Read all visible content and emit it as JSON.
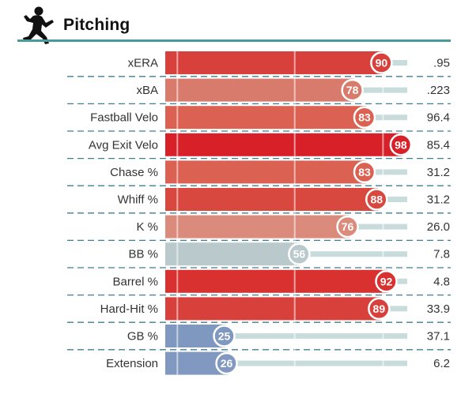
{
  "title": "Pitching",
  "icon": "pitcher-silhouette-icon",
  "colors": {
    "rule": "#4b9a9a",
    "track": "#c9dcdc",
    "divider": "#3f7f8f"
  },
  "chart_data": {
    "type": "bar",
    "orientation": "horizontal",
    "title": "Pitching",
    "xlim": [
      0,
      100
    ],
    "categories": [
      "xERA",
      "xBA",
      "Fastball Velo",
      "Avg Exit Velo",
      "Chase %",
      "Whiff %",
      "K %",
      "BB %",
      "Barrel %",
      "Hard-Hit %",
      "GB %",
      "Extension"
    ],
    "percentiles": [
      90,
      78,
      83,
      98,
      83,
      88,
      76,
      56,
      92,
      89,
      25,
      26
    ],
    "values": [
      ".95",
      ".223",
      "96.4",
      "85.4",
      "31.2",
      "31.2",
      "26.0",
      "7.8",
      "4.8",
      "33.9",
      "37.1",
      "6.2"
    ],
    "bar_colors": [
      "#d8403c",
      "#d97b6c",
      "#db6252",
      "#d82028",
      "#db6252",
      "#d9483f",
      "#db8b7c",
      "#bac9cb",
      "#d8312f",
      "#d8403c",
      "#7f98c0",
      "#8199c1"
    ]
  }
}
